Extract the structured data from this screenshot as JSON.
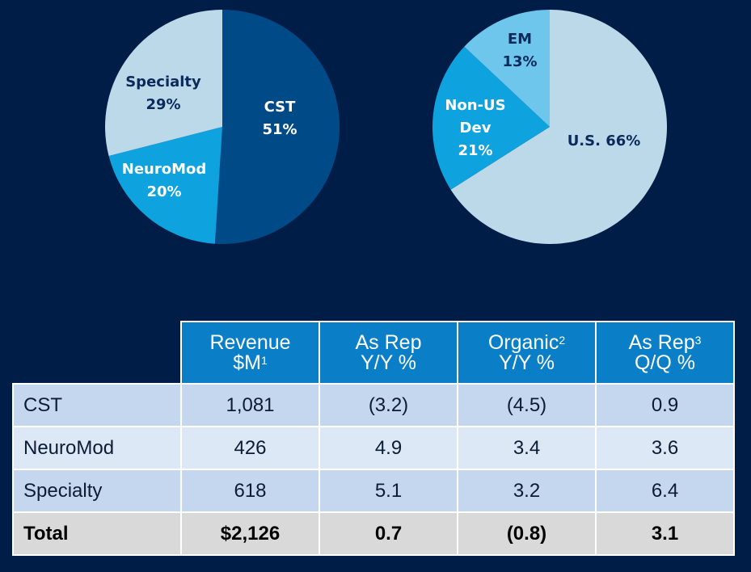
{
  "chart_data": [
    {
      "type": "pie",
      "title": "",
      "slices": [
        {
          "label": "CST",
          "line1": "CST",
          "line2": "51%",
          "value": 51,
          "color": "#004a87",
          "text_color": "#ffffff"
        },
        {
          "label": "NeuroMod",
          "line1": "NeuroMod",
          "line2": "20%",
          "value": 20,
          "color": "#0ea2de",
          "text_color": "#ffffff"
        },
        {
          "label": "Specialty",
          "line1": "Specialty",
          "line2": "29%",
          "value": 29,
          "color": "#bcd9ea",
          "text_color": "#0b2a5a"
        }
      ]
    },
    {
      "type": "pie",
      "title": "",
      "slices": [
        {
          "label": "U.S.",
          "line1": "U.S. 66%",
          "line2": "",
          "value": 66,
          "color": "#bcd9ea",
          "text_color": "#0b2a5a"
        },
        {
          "label": "Non-US Dev",
          "line1": "Non-US",
          "line2": "Dev",
          "line3": "21%",
          "value": 21,
          "color": "#0ea2de",
          "text_color": "#ffffff"
        },
        {
          "label": "EM",
          "line1": "EM",
          "line2": "13%",
          "value": 13,
          "color": "#6ec6ec",
          "text_color": "#0b2a5a"
        }
      ]
    },
    {
      "type": "table",
      "columns": [
        {
          "key": "revenue",
          "line1": "Revenue",
          "line2": "$M",
          "sup": "1"
        },
        {
          "key": "asrep_yy",
          "line1": "As Rep",
          "line2": "Y/Y %",
          "sup": ""
        },
        {
          "key": "organic_yy",
          "line1": "Organic",
          "line2": "Y/Y %",
          "sup": "2"
        },
        {
          "key": "asrep_qq",
          "line1": "As Rep",
          "line2": "Q/Q %",
          "sup": "3"
        }
      ],
      "rows": [
        {
          "label": "CST",
          "values": [
            "1,081",
            "(3.2)",
            "(4.5)",
            "0.9"
          ]
        },
        {
          "label": "NeuroMod",
          "values": [
            "426",
            "4.9",
            "3.4",
            "3.6"
          ]
        },
        {
          "label": "Specialty",
          "values": [
            "618",
            "5.1",
            "3.2",
            "6.4"
          ]
        }
      ],
      "total": {
        "label": "Total",
        "values": [
          "$2,126",
          "0.7",
          "(0.8)",
          "3.1"
        ]
      }
    }
  ]
}
